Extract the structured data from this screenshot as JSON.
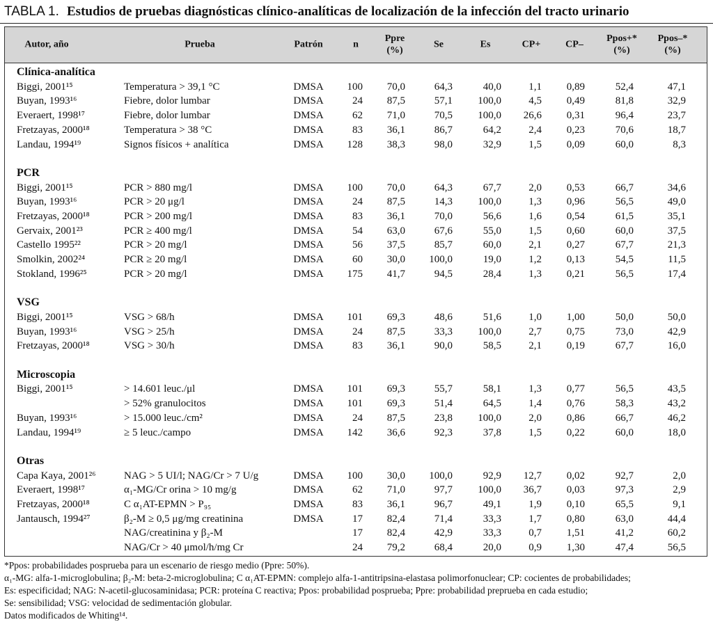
{
  "title": {
    "label": "TABLA 1.",
    "text": "Estudios de pruebas diagnósticas clínico-analíticas de localización de la infección del tracto urinario"
  },
  "table": {
    "columns": [
      "Autor, año",
      "Prueba",
      "Patrón",
      "n",
      "Ppre\n(%)",
      "Se",
      "Es",
      "CP+",
      "CP–",
      "Ppos+*\n(%)",
      "Ppos–*\n(%)"
    ],
    "sections": [
      {
        "name": "Clínica-analítica",
        "rows": [
          [
            "Biggi, 2001¹⁵",
            "Temperatura > 39,1 °C",
            "DMSA",
            "100",
            "70,0",
            "64,3",
            "40,0",
            "1,1",
            "0,89",
            "52,4",
            "47,1"
          ],
          [
            "Buyan, 1993¹⁶",
            "Fiebre, dolor lumbar",
            "DMSA",
            "24",
            "87,5",
            "57,1",
            "100,0",
            "4,5",
            "0,49",
            "81,8",
            "32,9"
          ],
          [
            "Everaert, 1998¹⁷",
            "Fiebre, dolor lumbar",
            "DMSA",
            "62",
            "71,0",
            "70,5",
            "100,0",
            "26,6",
            "0,31",
            "96,4",
            "23,7"
          ],
          [
            "Fretzayas, 2000¹⁸",
            "Temperatura > 38 °C",
            "DMSA",
            "83",
            "36,1",
            "86,7",
            "64,2",
            "2,4",
            "0,23",
            "70,6",
            "18,7"
          ],
          [
            "Landau, 1994¹⁹",
            "Signos físicos + analítica",
            "DMSA",
            "128",
            "38,3",
            "98,0",
            "32,9",
            "1,5",
            "0,09",
            "60,0",
            "8,3"
          ]
        ]
      },
      {
        "name": "PCR",
        "rows": [
          [
            "Biggi, 2001¹⁵",
            "PCR > 880 mg/l",
            "DMSA",
            "100",
            "70,0",
            "64,3",
            "67,7",
            "2,0",
            "0,53",
            "66,7",
            "34,6"
          ],
          [
            "Buyan, 1993¹⁶",
            "PCR > 20 μg/l",
            "DMSA",
            "24",
            "87,5",
            "14,3",
            "100,0",
            "1,3",
            "0,96",
            "56,5",
            "49,0"
          ],
          [
            "Fretzayas, 2000¹⁸",
            "PCR > 200 mg/l",
            "DMSA",
            "83",
            "36,1",
            "70,0",
            "56,6",
            "1,6",
            "0,54",
            "61,5",
            "35,1"
          ],
          [
            "Gervaix, 2001²³",
            "PCR ≥ 400 mg/l",
            "DMSA",
            "54",
            "63,0",
            "67,6",
            "55,0",
            "1,5",
            "0,60",
            "60,0",
            "37,5"
          ],
          [
            "Castello 1995²²",
            "PCR > 20 mg/l",
            "DMSA",
            "56",
            "37,5",
            "85,7",
            "60,0",
            "2,1",
            "0,27",
            "67,7",
            "21,3"
          ],
          [
            "Smolkin, 2002²⁴",
            "PCR ≥ 20 mg/l",
            "DMSA",
            "60",
            "30,0",
            "100,0",
            "19,0",
            "1,2",
            "0,13",
            "54,5",
            "11,5"
          ],
          [
            "Stokland, 1996²⁵",
            "PCR > 20 mg/l",
            "DMSA",
            "175",
            "41,7",
            "94,5",
            "28,4",
            "1,3",
            "0,21",
            "56,5",
            "17,4"
          ]
        ]
      },
      {
        "name": "VSG",
        "rows": [
          [
            "Biggi, 2001¹⁵",
            "VSG > 68/h",
            "DMSA",
            "101",
            "69,3",
            "48,6",
            "51,6",
            "1,0",
            "1,00",
            "50,0",
            "50,0"
          ],
          [
            "Buyan, 1993¹⁶",
            "VSG > 25/h",
            "DMSA",
            "24",
            "87,5",
            "33,3",
            "100,0",
            "2,7",
            "0,75",
            "73,0",
            "42,9"
          ],
          [
            "Fretzayas, 2000¹⁸",
            "VSG > 30/h",
            "DMSA",
            "83",
            "36,1",
            "90,0",
            "58,5",
            "2,1",
            "0,19",
            "67,7",
            "16,0"
          ]
        ]
      },
      {
        "name": "Microscopia",
        "rows": [
          [
            "Biggi, 2001¹⁵",
            "> 14.601 leuc./μl",
            "DMSA",
            "101",
            "69,3",
            "55,7",
            "58,1",
            "1,3",
            "0,77",
            "56,5",
            "43,5"
          ],
          [
            null,
            "> 52% granulocitos",
            "DMSA",
            "101",
            "69,3",
            "51,4",
            "64,5",
            "1,4",
            "0,76",
            "58,3",
            "43,2"
          ],
          [
            "Buyan, 1993¹⁶",
            "> 15.000 leuc./cm²",
            "DMSA",
            "24",
            "87,5",
            "23,8",
            "100,0",
            "2,0",
            "0,86",
            "66,7",
            "46,2"
          ],
          [
            "Landau, 1994¹⁹",
            "≥ 5 leuc./campo",
            "DMSA",
            "142",
            "36,6",
            "92,3",
            "37,8",
            "1,5",
            "0,22",
            "60,0",
            "18,0"
          ]
        ]
      },
      {
        "name": "Otras",
        "rows": [
          [
            "Capa Kaya, 2001²⁶",
            "NAG > 5 UI/l; NAG/Cr > 7 U/g",
            "DMSA",
            "100",
            "30,0",
            "100,0",
            "92,9",
            "12,7",
            "0,02",
            "92,7",
            "2,0"
          ],
          [
            "Everaert, 1998¹⁷",
            "α₁-MG/Cr orina > 10 mg/g",
            "DMSA",
            "62",
            "71,0",
            "97,7",
            "100,0",
            "36,7",
            "0,03",
            "97,3",
            "2,9"
          ],
          [
            "Fretzayas, 2000¹⁸",
            "C α₁AT-EPMN > P₉₅",
            "DMSA",
            "83",
            "36,1",
            "96,7",
            "49,1",
            "1,9",
            "0,10",
            "65,5",
            "9,1"
          ],
          [
            "Jantausch, 1994²⁷",
            "β₂-M ≥ 0,5 μg/mg creatinina",
            "DMSA",
            "17",
            "82,4",
            "71,4",
            "33,3",
            "1,7",
            "0,80",
            "63,0",
            "44,4"
          ],
          [
            null,
            "NAG/creatinina y β₂-M",
            null,
            "17",
            "82,4",
            "42,9",
            "33,3",
            "0,7",
            "1,51",
            "41,2",
            "60,2"
          ],
          [
            null,
            "NAG/Cr > 40 μmol/h/mg Cr",
            null,
            "24",
            "79,2",
            "68,4",
            "20,0",
            "0,9",
            "1,30",
            "47,4",
            "56,5"
          ]
        ]
      }
    ]
  },
  "footnotes": [
    "*Ppos: probabilidades posprueba para un escenario de riesgo medio (Ppre: 50%).",
    "α₁-MG: alfa-1-microglobulina; β₂-M: beta-2-microglobulina; C α₁AT-EPMN: complejo alfa-1-antitripsina-elastasa polimorfonuclear; CP: cocientes de probabilidades;",
    "Es: especificidad; NAG: N-acetil-glucosaminidasa; PCR: proteína C reactiva; Ppos: probabilidad posprueba; Ppre: probabilidad preprueba en cada estudio;",
    "Se: sensibilidad; VSG: velocidad de sedimentación globular.",
    "Datos modificados de Whiting¹⁴."
  ]
}
